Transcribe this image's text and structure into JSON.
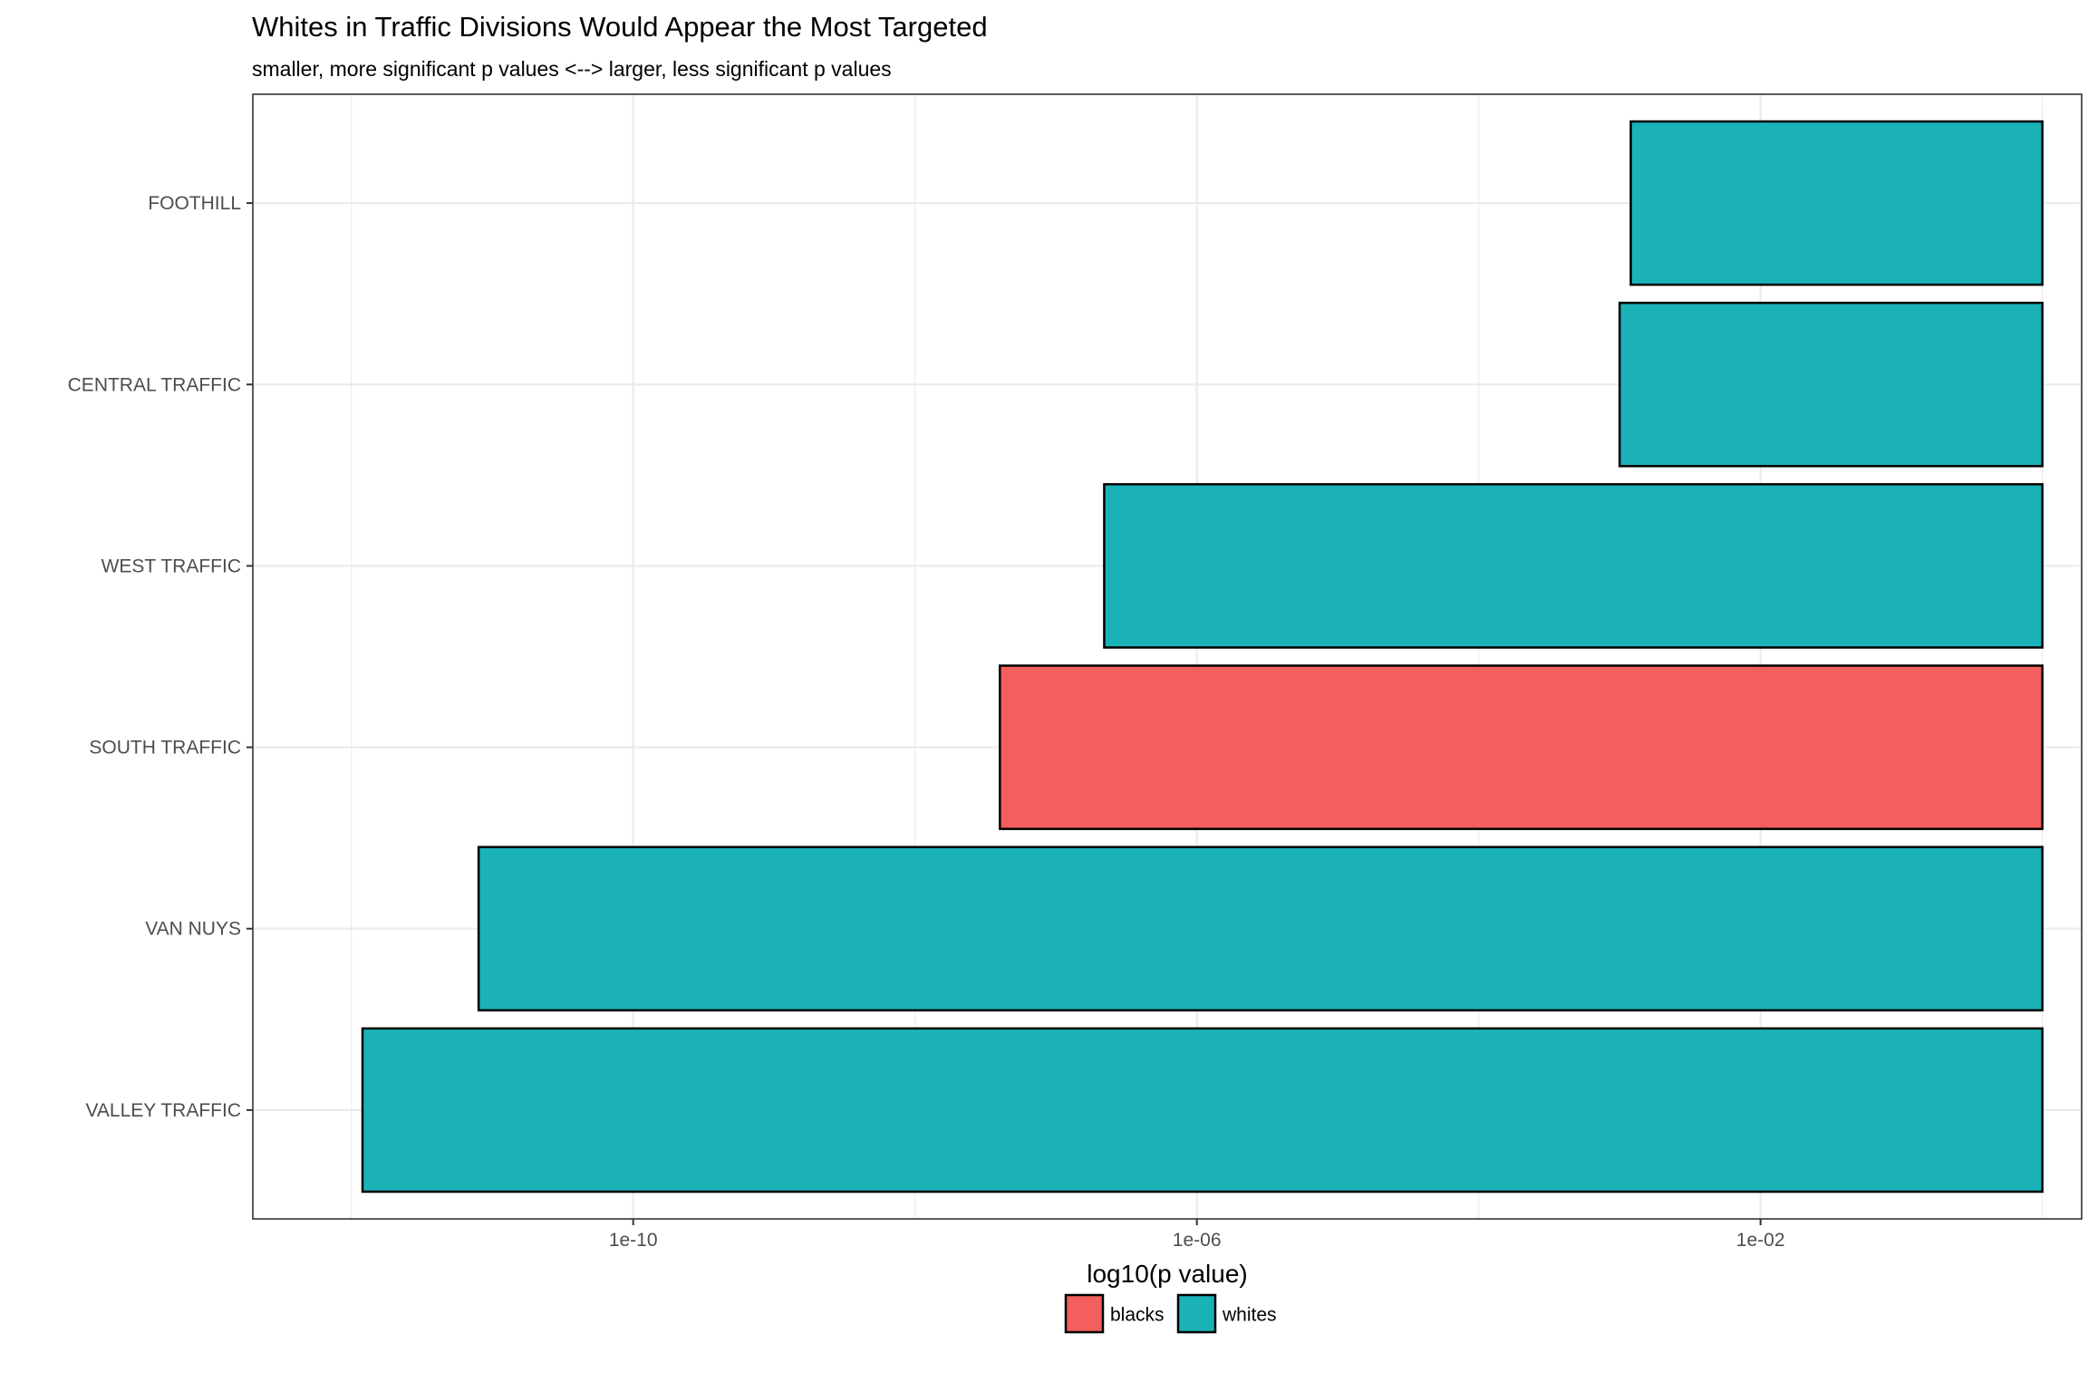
{
  "chart_data": {
    "type": "bar",
    "orientation": "horizontal",
    "title": "Whites in Traffic Divisions Would Appear the Most Targeted",
    "subtitle": "smaller, more significant p values <--> larger, less significant p values",
    "xlabel": "log10(p value)",
    "ylabel": "",
    "x_scale": "log10",
    "xlim": [
      2e-13,
      1.9
    ],
    "x_ticks": [
      "1e-10",
      "1e-06",
      "1e-02"
    ],
    "x_tick_values": [
      1e-10,
      1e-06,
      0.01
    ],
    "categories": [
      "FOOTHILL",
      "CENTRAL TRAFFIC",
      "WEST TRAFFIC",
      "SOUTH TRAFFIC",
      "VAN NUYS",
      "VALLEY TRAFFIC"
    ],
    "bar_end": 1,
    "values": [
      0.0012,
      0.001,
      2.2e-07,
      4e-08,
      8e-12,
      1.2e-12
    ],
    "groups": [
      "whites",
      "whites",
      "whites",
      "blacks",
      "whites",
      "whites"
    ],
    "legend": {
      "position": "bottom",
      "items": [
        {
          "label": "blacks",
          "color": "#F25F5C"
        },
        {
          "label": "whites",
          "color": "#1AB2B7"
        }
      ]
    },
    "grid": true,
    "colors": {
      "blacks": "#F25F5C",
      "whites": "#1AB2B7"
    }
  }
}
